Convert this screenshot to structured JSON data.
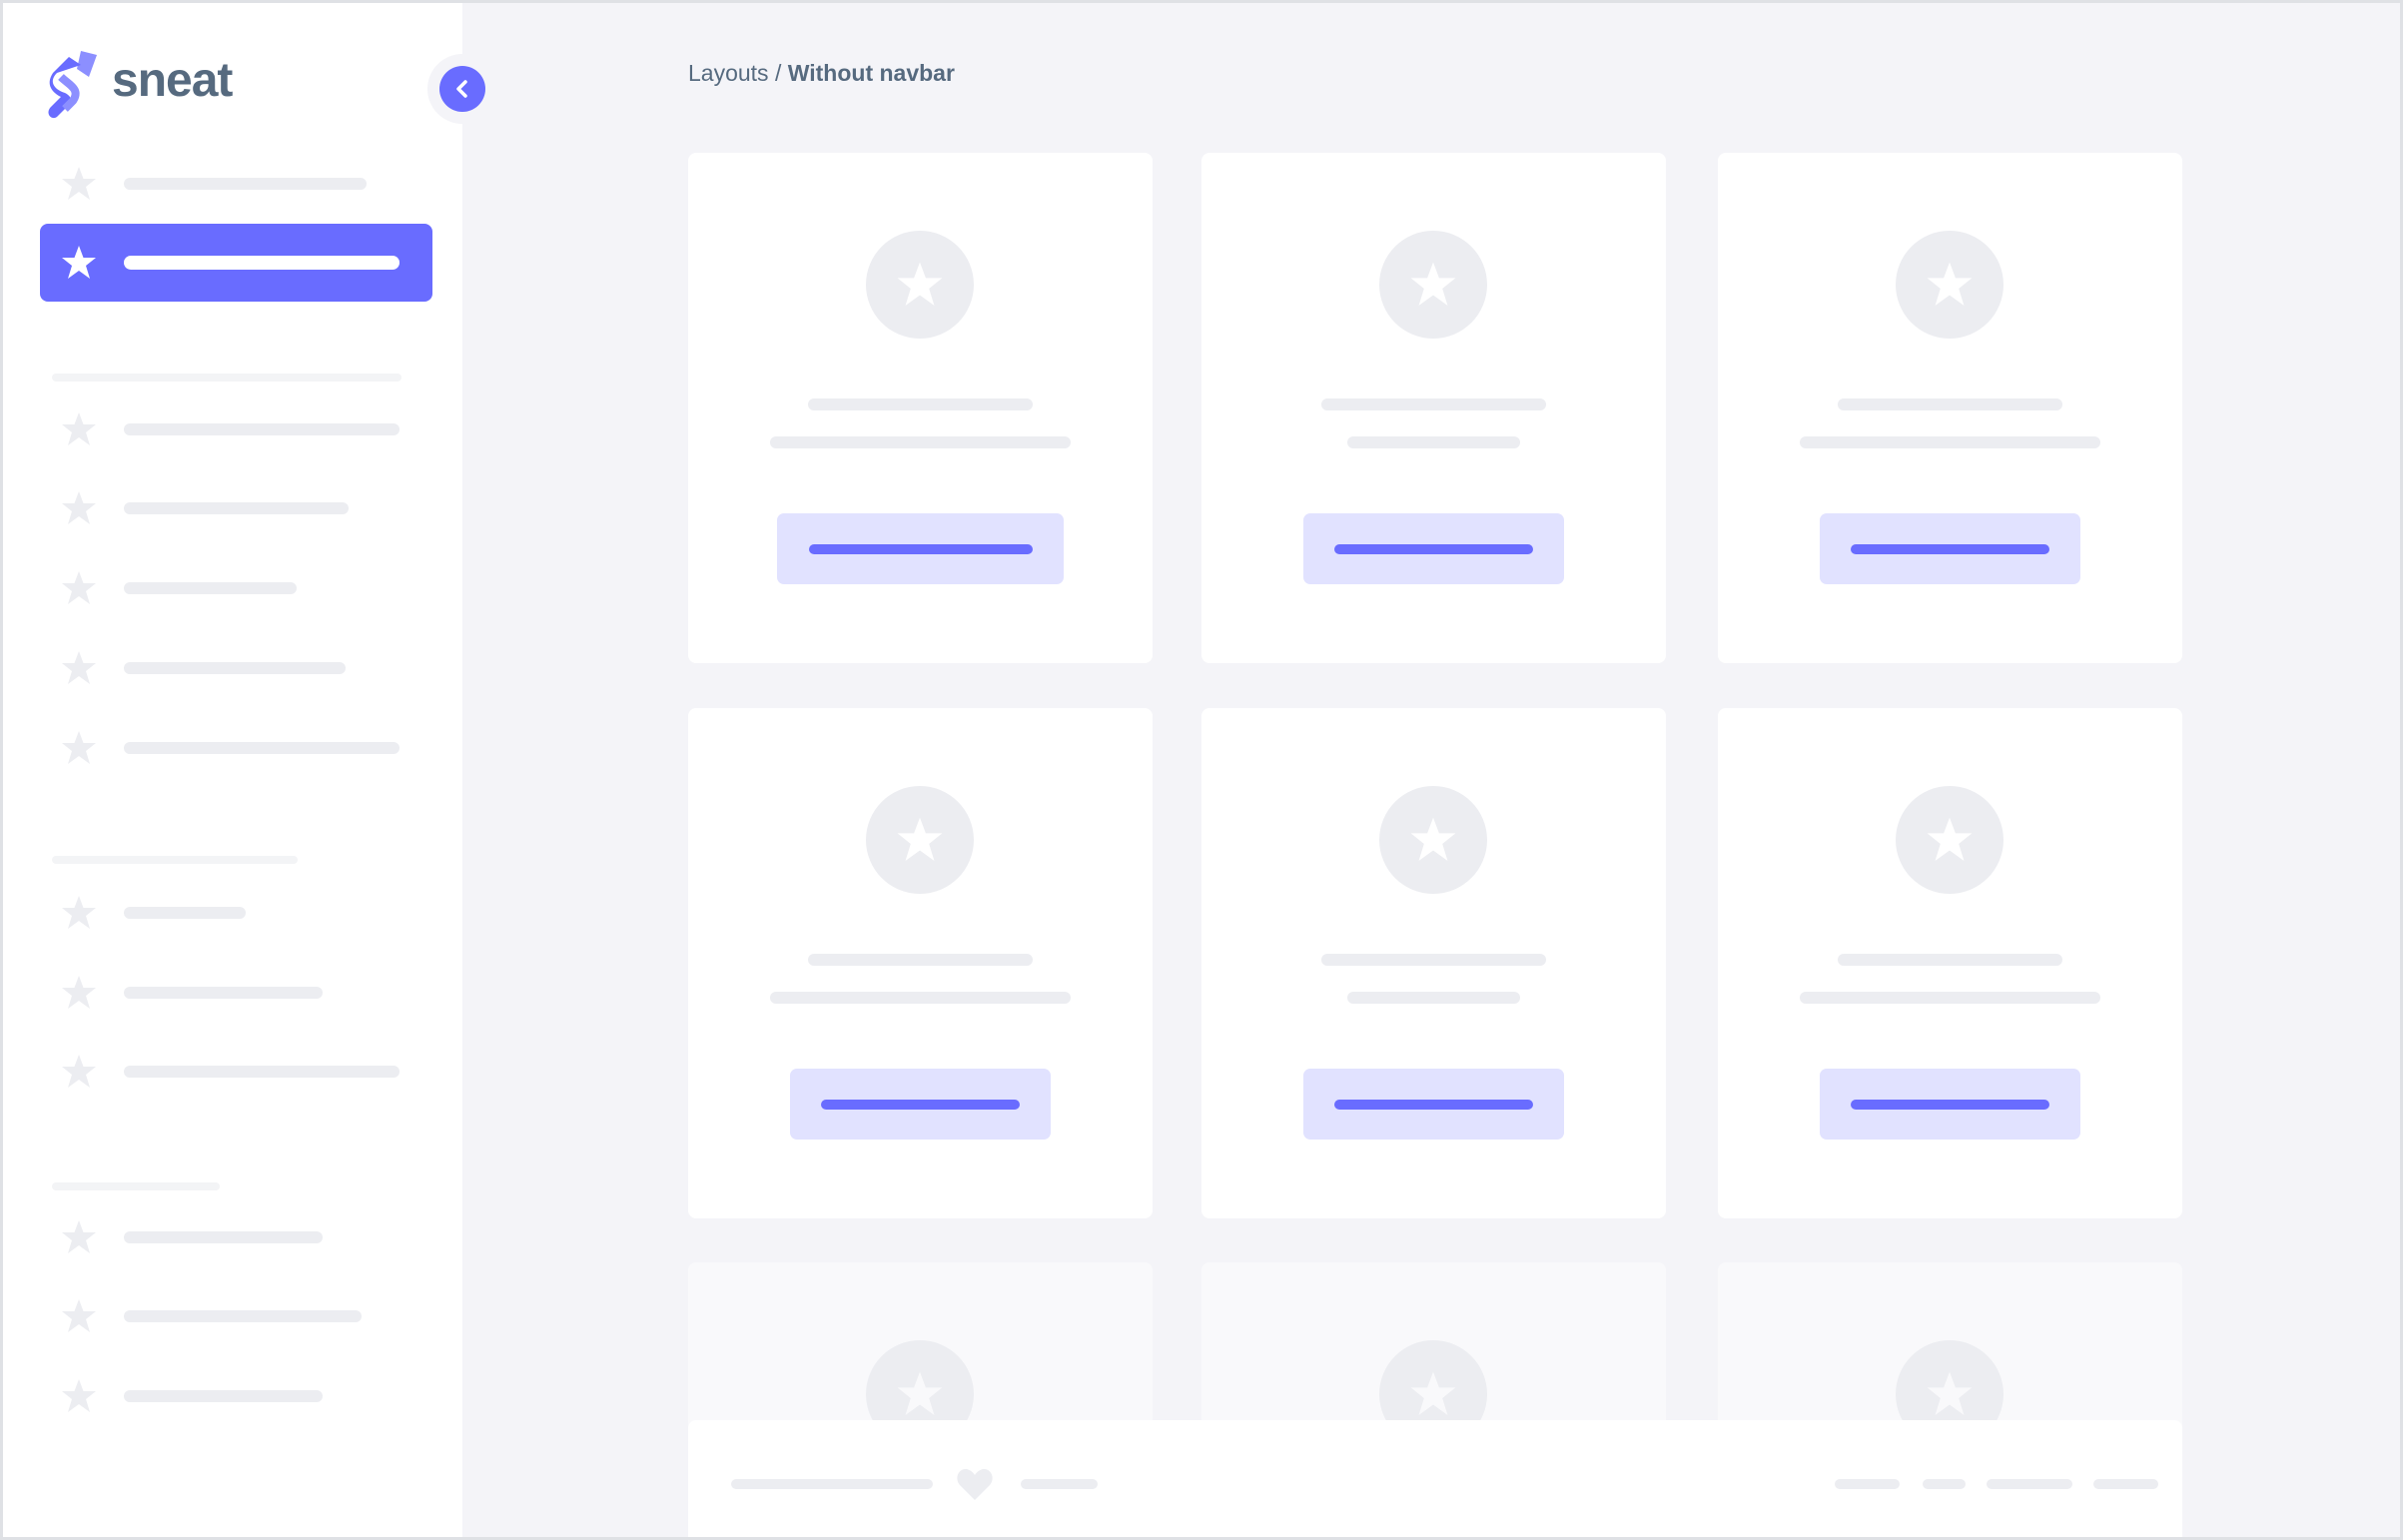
{
  "brand": {
    "name": "sneat",
    "accent": "#696cff"
  },
  "breadcrumb": {
    "parent": "Layouts",
    "separator": " / ",
    "current": "Without navbar"
  },
  "sidebar": {
    "toggle_icon": "chevron-left-icon",
    "item_icon": "star-icon",
    "active_index": 1
  },
  "cards": {
    "icon": "star-icon"
  },
  "footer": {
    "icon": "heart-icon"
  }
}
